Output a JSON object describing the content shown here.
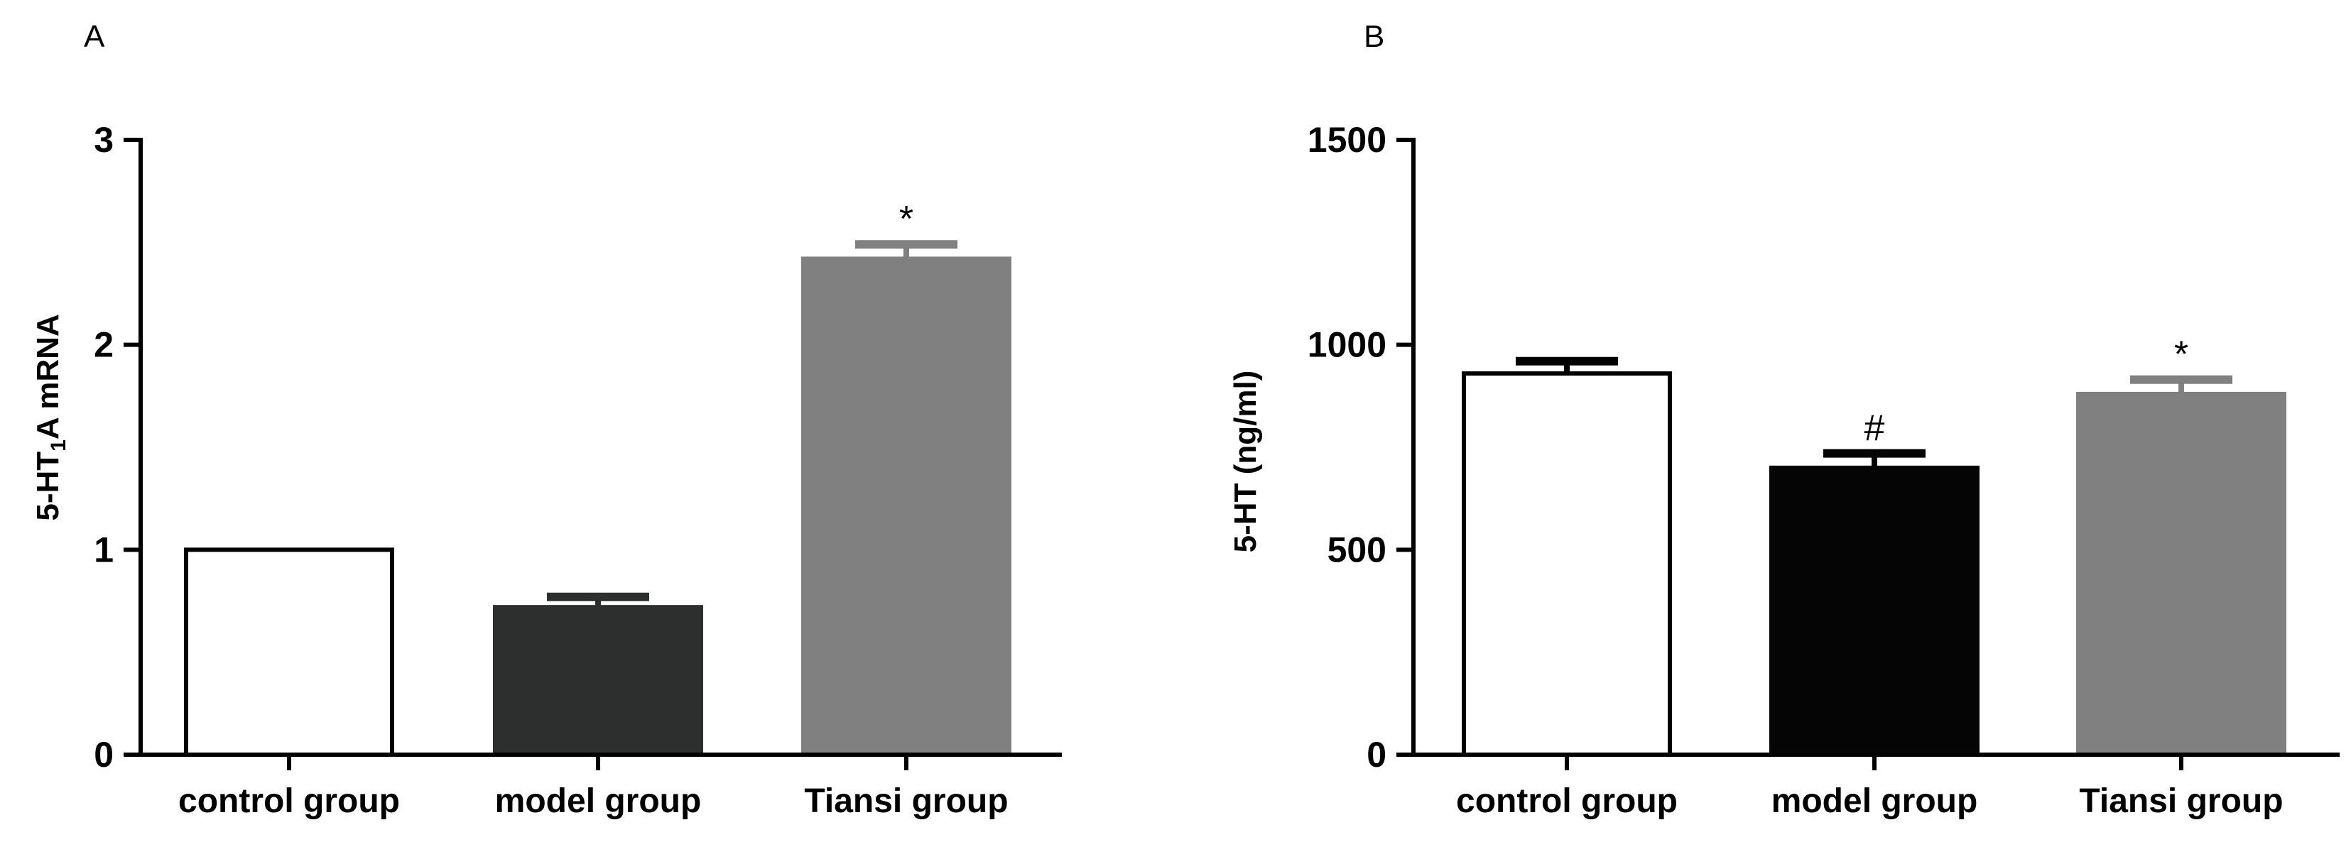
{
  "chart_data": [
    {
      "panel_label": "A",
      "type": "bar",
      "ylabel": "5-HT1A mRNA",
      "ylabel_parts": {
        "main": "5-HT",
        "sub": "1",
        "rest": "A mRNA"
      },
      "ylim": [
        0,
        3
      ],
      "yticks": [
        "0",
        "1",
        "2",
        "3"
      ],
      "categories": [
        "control group",
        "model group",
        "Tiansi group"
      ],
      "values": [
        1.0,
        0.72,
        2.42
      ],
      "errors": [
        0.0,
        0.05,
        0.07
      ],
      "colors": [
        "#ffffff",
        "#2d2f2f",
        "#808080"
      ],
      "significance": [
        "",
        "",
        "*"
      ]
    },
    {
      "panel_label": "B",
      "type": "bar",
      "ylabel": "5-HT (ng/ml)",
      "ylim": [
        0,
        1500
      ],
      "yticks": [
        "0",
        "500",
        "1000",
        "1500"
      ],
      "categories": [
        "control group",
        "model group",
        "Tiansi group"
      ],
      "values": [
        930,
        700,
        880
      ],
      "errors": [
        30,
        35,
        35
      ],
      "colors": [
        "#ffffff",
        "#050505",
        "#808080"
      ],
      "significance": [
        "",
        "#",
        "*"
      ]
    }
  ]
}
